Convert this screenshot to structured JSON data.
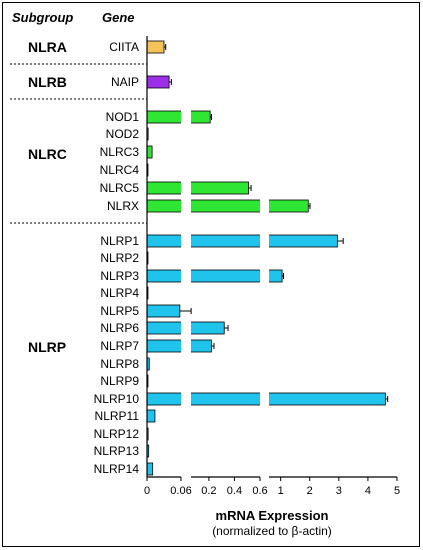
{
  "chart_data": {
    "type": "bar",
    "orientation": "horizontal",
    "column_headers": {
      "subgroup": "Subgroup",
      "gene": "Gene"
    },
    "groups": [
      {
        "subgroup": "NLRA",
        "color": "#f5c35a",
        "genes": [
          {
            "gene": "CIITA",
            "value": 0.03,
            "error": 0.003
          }
        ]
      },
      {
        "subgroup": "NLRB",
        "color": "#9b30e8",
        "genes": [
          {
            "gene": "NAIP",
            "value": 0.039,
            "error": 0.004
          }
        ]
      },
      {
        "subgroup": "NLRC",
        "color": "#2fe635",
        "genes": [
          {
            "gene": "NOD1",
            "value": 0.21,
            "error": 0.01
          },
          {
            "gene": "NOD2",
            "value": 0.002,
            "error": 0.0005
          },
          {
            "gene": "NLRC3",
            "value": 0.009,
            "error": 0.001
          },
          {
            "gene": "NLRC4",
            "value": 0.001,
            "error": 0.0003
          },
          {
            "gene": "NLRC5",
            "value": 0.51,
            "error": 0.02
          },
          {
            "gene": "NLRX",
            "value": 1.95,
            "error": 0.06
          }
        ]
      },
      {
        "subgroup": "NLRP",
        "color": "#20c3ec",
        "genes": [
          {
            "gene": "NLRP1",
            "value": 2.95,
            "error": 0.2
          },
          {
            "gene": "NLRP2",
            "value": 0.001,
            "error": 0.0003
          },
          {
            "gene": "NLRP3",
            "value": 1.05,
            "error": 0.05
          },
          {
            "gene": "NLRP4",
            "value": 0.001,
            "error": 0.0003
          },
          {
            "gene": "NLRP5",
            "value": 0.058,
            "error": 0.003
          },
          {
            "gene": "NLRP6",
            "value": 0.32,
            "error": 0.03
          },
          {
            "gene": "NLRP7",
            "value": 0.22,
            "error": 0.02
          },
          {
            "gene": "NLRP8",
            "value": 0.004,
            "error": 0.0005
          },
          {
            "gene": "NLRP9",
            "value": 0.001,
            "error": 0.0003
          },
          {
            "gene": "NLRP10",
            "value": 4.6,
            "error": 0.08
          },
          {
            "gene": "NLRP11",
            "value": 0.014,
            "error": 0.001
          },
          {
            "gene": "NLRP12",
            "value": 0.002,
            "error": 0.0005
          },
          {
            "gene": "NLRP13",
            "value": 0.003,
            "error": 0.0005
          },
          {
            "gene": "NLRP14",
            "value": 0.01,
            "error": 0.001
          }
        ]
      }
    ],
    "x_axis": {
      "segments": [
        {
          "range": [
            0,
            0.06
          ],
          "ticks": [
            "0",
            "0.06"
          ]
        },
        {
          "range": [
            0.06,
            0.6
          ],
          "ticks": [
            "0.2",
            "0.4",
            "0.6"
          ]
        },
        {
          "range": [
            0.6,
            5
          ],
          "ticks": [
            "1",
            "2",
            "3",
            "4",
            "5"
          ]
        }
      ]
    },
    "xlabel": "mRNA Expression",
    "xlabel_sub": "(normalized to β-actin)",
    "error_bars": true,
    "grid": false
  }
}
